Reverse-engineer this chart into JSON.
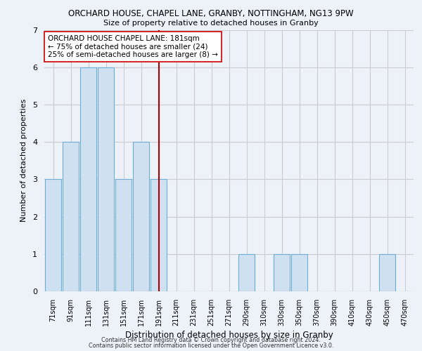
{
  "title": "ORCHARD HOUSE, CHAPEL LANE, GRANBY, NOTTINGHAM, NG13 9PW",
  "subtitle": "Size of property relative to detached houses in Granby",
  "xlabel": "Distribution of detached houses by size in Granby",
  "ylabel": "Number of detached properties",
  "bin_labels": [
    "71sqm",
    "91sqm",
    "111sqm",
    "131sqm",
    "151sqm",
    "171sqm",
    "191sqm",
    "211sqm",
    "231sqm",
    "251sqm",
    "271sqm",
    "290sqm",
    "310sqm",
    "330sqm",
    "350sqm",
    "370sqm",
    "390sqm",
    "410sqm",
    "430sqm",
    "450sqm",
    "470sqm"
  ],
  "bar_heights": [
    3,
    4,
    6,
    6,
    3,
    4,
    3,
    0,
    0,
    0,
    0,
    1,
    0,
    1,
    1,
    0,
    0,
    0,
    0,
    1,
    0
  ],
  "bar_color": "#cfe0f0",
  "bar_edge_color": "#6baed6",
  "ylim": [
    0,
    7
  ],
  "yticks": [
    0,
    1,
    2,
    3,
    4,
    5,
    6,
    7
  ],
  "reference_line_x": 6.0,
  "annotation_title": "ORCHARD HOUSE CHAPEL LANE: 181sqm",
  "annotation_line1": "← 75% of detached houses are smaller (24)",
  "annotation_line2": "25% of semi-detached houses are larger (8) →",
  "footer_line1": "Contains HM Land Registry data © Crown copyright and database right 2024.",
  "footer_line2": "Contains public sector information licensed under the Open Government Licence v3.0.",
  "grid_color": "#cccccc",
  "background_color": "#edf2f8"
}
